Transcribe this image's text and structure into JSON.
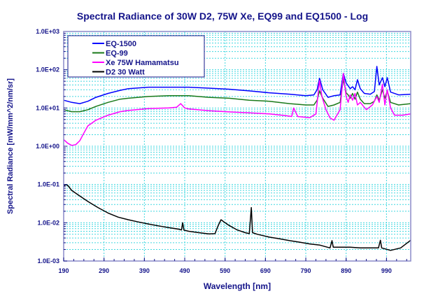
{
  "chart_data": {
    "type": "line",
    "title": "Spectral Radiance of 30W D2, 75W Xe, EQ99 and EQ1500 - Log",
    "xlabel": "Wavelength [nm]",
    "ylabel": "Spectral Radiance [mW/mm^2/nm/sr]",
    "xlim": [
      190,
      1050
    ],
    "ylim": [
      0.001,
      1000
    ],
    "yscale": "log",
    "xticks": [
      190,
      290,
      390,
      490,
      590,
      690,
      790,
      890,
      990
    ],
    "xtick_labels": [
      "190",
      "290",
      "390",
      "490",
      "590",
      "690",
      "790",
      "890",
      "990"
    ],
    "yticks": [
      1000,
      100,
      10,
      1,
      0.1,
      0.01,
      0.001
    ],
    "ytick_labels": [
      "1.0E+03",
      "1.0E+02",
      "1.0E+01",
      "1.0E+00",
      "1.0E-01",
      "1.0E-02",
      "1.0E-03"
    ],
    "grid": true,
    "legend_position": "top-left",
    "series": [
      {
        "name": "EQ-1500",
        "color": "#0000ff",
        "x": [
          190,
          210,
          230,
          250,
          270,
          300,
          330,
          350,
          400,
          450,
          500,
          550,
          600,
          650,
          700,
          750,
          790,
          810,
          818,
          824,
          832,
          845,
          860,
          875,
          883,
          890,
          895,
          900,
          906,
          912,
          918,
          925,
          935,
          950,
          960,
          966,
          972,
          980,
          986,
          992,
          1000,
          1020,
          1050
        ],
        "y": [
          16,
          14,
          13,
          15,
          19,
          24,
          29,
          32,
          35,
          35,
          35,
          33,
          31,
          28,
          25,
          23,
          21,
          22,
          30,
          60,
          30,
          19,
          21,
          22,
          80,
          45,
          38,
          32,
          36,
          30,
          55,
          32,
          24,
          23,
          27,
          122,
          40,
          62,
          36,
          62,
          26,
          22,
          23
        ]
      },
      {
        "name": "EQ-99",
        "color": "#1a7a1a",
        "x": [
          190,
          210,
          230,
          250,
          270,
          300,
          330,
          350,
          400,
          450,
          500,
          550,
          600,
          650,
          700,
          750,
          790,
          810,
          818,
          824,
          832,
          845,
          860,
          875,
          883,
          890,
          895,
          900,
          906,
          912,
          918,
          925,
          935,
          950,
          960,
          966,
          972,
          980,
          986,
          992,
          1000,
          1020,
          1050
        ],
        "y": [
          9,
          8,
          8,
          9,
          11,
          14,
          17,
          18,
          20,
          21,
          21,
          19,
          18,
          16,
          15,
          13,
          12,
          12,
          16,
          28,
          18,
          11,
          12,
          14,
          57,
          25,
          22,
          18,
          24,
          17,
          26,
          17,
          13,
          13,
          15,
          22,
          16,
          30,
          18,
          28,
          14,
          12,
          13
        ]
      },
      {
        "name": "Xe 75W Hamamatsu",
        "color": "#ff00ff",
        "x": [
          190,
          200,
          210,
          220,
          230,
          240,
          250,
          270,
          300,
          330,
          350,
          400,
          450,
          470,
          480,
          490,
          500,
          550,
          600,
          650,
          700,
          740,
          755,
          760,
          770,
          800,
          815,
          824,
          830,
          840,
          850,
          860,
          875,
          883,
          890,
          895,
          900,
          906,
          912,
          918,
          925,
          940,
          955,
          966,
          972,
          980,
          986,
          992,
          1000,
          1010,
          1030,
          1050
        ],
        "y": [
          1.5,
          1.2,
          1.05,
          1.1,
          1.4,
          2.2,
          3.4,
          4.8,
          6.5,
          8,
          8.6,
          9.7,
          10,
          10.5,
          13,
          10,
          9.5,
          8.5,
          7.9,
          7.5,
          7,
          6.3,
          6,
          10,
          6,
          5.6,
          7,
          52,
          20,
          9,
          5.5,
          4.8,
          9,
          80,
          20,
          14,
          22,
          16,
          24,
          12,
          14,
          9,
          12,
          20,
          14,
          42,
          12,
          30,
          10,
          6.5,
          6.5,
          7
        ]
      },
      {
        "name": "D2 30 Watt",
        "color": "#000000",
        "x": [
          190,
          195,
          200,
          210,
          230,
          250,
          275,
          300,
          325,
          350,
          375,
          400,
          425,
          450,
          475,
          482,
          485,
          488,
          500,
          525,
          550,
          565,
          572,
          580,
          590,
          600,
          620,
          640,
          650,
          655,
          658,
          670,
          700,
          725,
          750,
          775,
          800,
          825,
          850,
          855,
          858,
          870,
          900,
          925,
          950,
          970,
          975,
          978,
          1000,
          1025,
          1050
        ],
        "y": [
          0.09,
          0.1,
          0.095,
          0.07,
          0.05,
          0.036,
          0.025,
          0.018,
          0.014,
          0.012,
          0.0105,
          0.0093,
          0.0083,
          0.0075,
          0.0068,
          0.0065,
          0.01,
          0.0064,
          0.006,
          0.0055,
          0.0051,
          0.0052,
          0.008,
          0.012,
          0.01,
          0.0085,
          0.0065,
          0.0055,
          0.0052,
          0.025,
          0.0055,
          0.005,
          0.0042,
          0.0038,
          0.0034,
          0.0031,
          0.0028,
          0.0026,
          0.0022,
          0.0034,
          0.0023,
          0.0023,
          0.0023,
          0.0022,
          0.0022,
          0.0022,
          0.0035,
          0.0022,
          0.0019,
          0.0022,
          0.0035
        ]
      }
    ]
  }
}
